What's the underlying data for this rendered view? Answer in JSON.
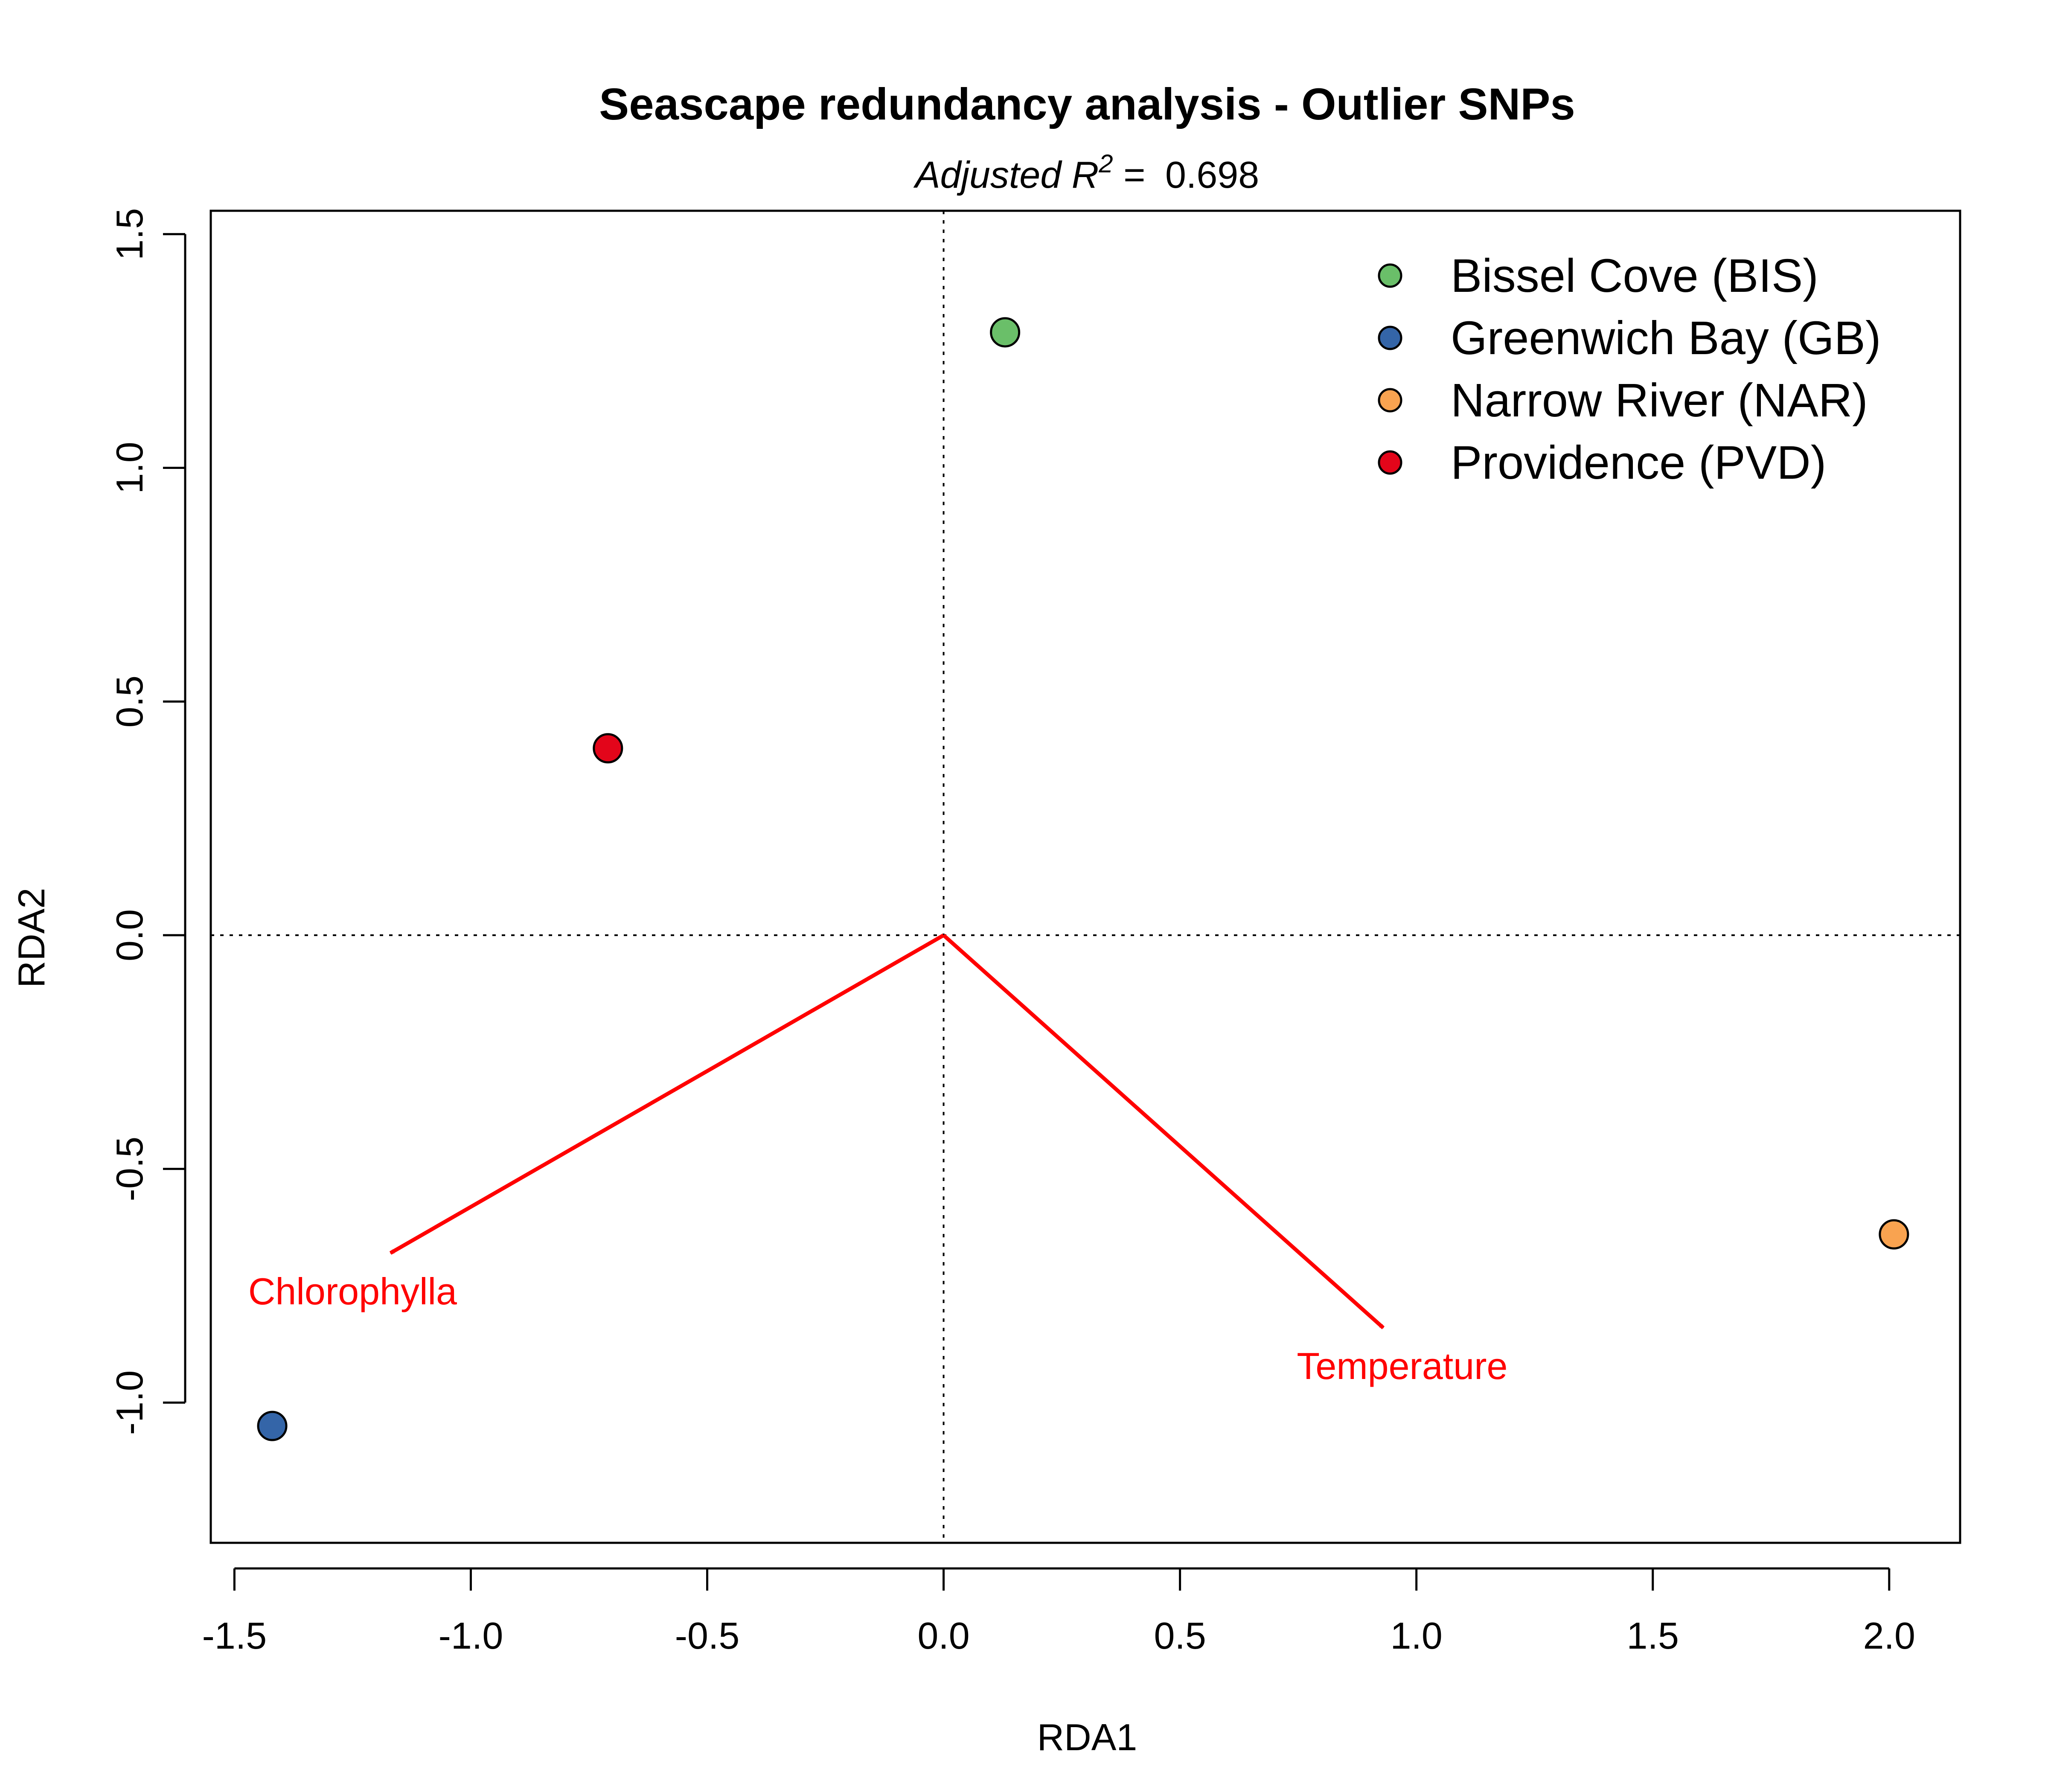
{
  "chart_data": {
    "type": "scatter",
    "title": "Seascape redundancy analysis - Outlier SNPs",
    "subtitle": {
      "label": "Adjusted R",
      "superscript": "2",
      "equals": " = ",
      "value": "0.698"
    },
    "xlabel": "RDA1",
    "ylabel": "RDA2",
    "xlim": [
      -1.55,
      2.15
    ],
    "ylim": [
      -1.3,
      1.55
    ],
    "xticks": [
      -1.5,
      -1.0,
      -0.5,
      0.0,
      0.5,
      1.0,
      1.5,
      2.0
    ],
    "xtick_labels": [
      "-1.5",
      "-1.0",
      "-0.5",
      "0.0",
      "0.5",
      "1.0",
      "1.5",
      "2.0"
    ],
    "yticks": [
      -1.0,
      -0.5,
      0.0,
      0.5,
      1.0,
      1.5
    ],
    "ytick_labels": [
      "-1.0",
      "-0.5",
      "0.0",
      "0.5",
      "1.0",
      "1.5"
    ],
    "reference_lines": {
      "x": 0,
      "y": 0,
      "style": "dotted"
    },
    "grid": false,
    "legend_position": "top-right",
    "series": [
      {
        "name": "Bissel Cove (BIS)",
        "color": "#6abf69",
        "x": 0.13,
        "y": 1.29
      },
      {
        "name": "Greenwich Bay (GB)",
        "color": "#3465a8",
        "x": -1.42,
        "y": -1.05
      },
      {
        "name": "Narrow River (NAR)",
        "color": "#f9a350",
        "x": 2.01,
        "y": -0.64
      },
      {
        "name": "Providence (PVD)",
        "color": "#e3051a",
        "x": -0.71,
        "y": 0.4
      }
    ],
    "vectors": [
      {
        "name": "Chlorophylla",
        "x": -1.17,
        "y": -0.68,
        "color": "#ff0000"
      },
      {
        "name": "Temperature",
        "x": 0.93,
        "y": -0.84,
        "color": "#ff0000"
      }
    ]
  }
}
